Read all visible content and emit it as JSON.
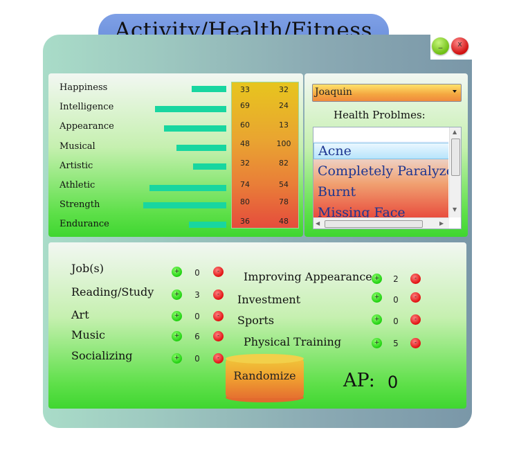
{
  "app": {
    "title": "Activity/Health/Fitness"
  },
  "window": {
    "minimize_glyph": "_",
    "close_glyph": "x"
  },
  "stats": {
    "labels": [
      "Happiness",
      "Intelligence",
      "Appearance",
      "Musical",
      "Artistic",
      "Athletic",
      "Strength",
      "Endurance"
    ],
    "bar_levels": [
      0.33,
      0.69,
      0.6,
      0.48,
      0.32,
      0.74,
      0.8,
      0.36
    ],
    "col1": [
      "33",
      "69",
      "60",
      "48",
      "32",
      "74",
      "80",
      "36"
    ],
    "col2": [
      "32",
      "24",
      "13",
      "100",
      "82",
      "54",
      "78",
      "48"
    ]
  },
  "character": {
    "selected": "Joaquin"
  },
  "health": {
    "title": "Health Problmes:",
    "items": [
      "Acne",
      "Completely Paralyzed",
      "Burnt",
      "Missing Face"
    ]
  },
  "activities": {
    "left": [
      {
        "label": "Job(s)",
        "count": "0"
      },
      {
        "label": "Reading/Study",
        "count": "3"
      },
      {
        "label": "Art",
        "count": "0"
      },
      {
        "label": "Music",
        "count": "6"
      },
      {
        "label": "Socializing",
        "count": "0"
      }
    ],
    "right": [
      {
        "label": "Improving Appearance",
        "count": "2"
      },
      {
        "label": "Investment",
        "count": "0"
      },
      {
        "label": "Sports",
        "count": "0"
      },
      {
        "label": "Physical Training",
        "count": "5"
      }
    ],
    "plus_glyph": "+",
    "minus_glyph": "-"
  },
  "randomize": {
    "label": "Randomize"
  },
  "ap": {
    "label": "AP:",
    "value": "0"
  },
  "colors": {
    "stat_bar": "#18d6a0",
    "title_tab": "#6e92dd",
    "panel_green": "#3fd630"
  }
}
